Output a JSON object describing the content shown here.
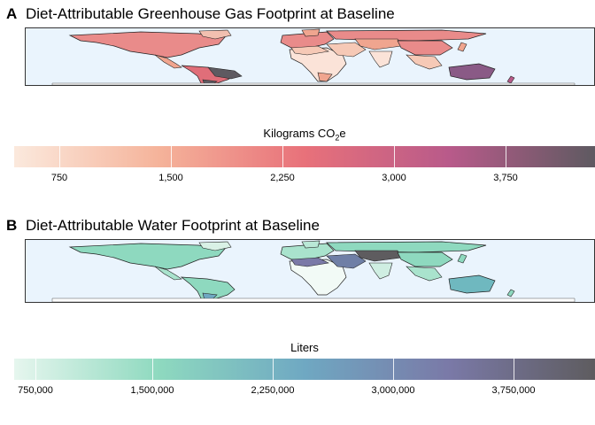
{
  "panel_a": {
    "letter": "A",
    "title": "Diet-Attributable Greenhouse Gas Footprint at Baseline",
    "legend_title_main": "Kilograms CO",
    "legend_title_sub": "2",
    "legend_title_end": "e",
    "ticks": [
      "750",
      "1,500",
      "2,250",
      "3,000",
      "3,750"
    ],
    "colors": {
      "low": "#fbe9dd",
      "mid1": "#f5b39a",
      "mid2": "#e8717a",
      "mid3": "#b85a8a",
      "high": "#5e5a61"
    }
  },
  "panel_b": {
    "letter": "B",
    "title": "Diet-Attributable Water Footprint at Baseline",
    "legend_title": "Liters",
    "ticks": [
      "750,000",
      "1,500,000",
      "2,250,000",
      "3,000,000",
      "3,750,000"
    ],
    "colors": {
      "low": "#e6f6ee",
      "mid1": "#8ed9bf",
      "mid2": "#6fa8c2",
      "mid3": "#7a79a7",
      "high": "#5e5c5f"
    }
  },
  "ocean_color": "#eaf4fd"
}
